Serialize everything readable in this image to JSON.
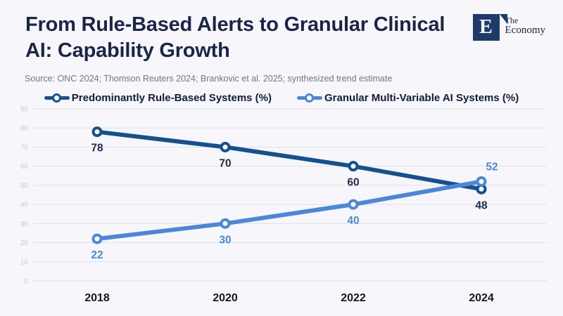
{
  "header": {
    "title": "From Rule-Based Alerts to Granular Clinical AI: Capability Growth",
    "source": "Source: ONC 2024; Thomson Reuters 2024; Brankovic et al. 2025; synthesized trend estimate"
  },
  "logo": {
    "letter": "E",
    "name_line1": "The",
    "name_line2": "Economy",
    "square_color": "#1e3a68"
  },
  "legend": [
    {
      "label": "Predominantly Rule-Based Systems (%)",
      "color": "#15518f"
    },
    {
      "label": "Granular Multi-Variable AI Systems (%)",
      "color": "#4a87db"
    }
  ],
  "chart_data": {
    "type": "line",
    "categories": [
      "2018",
      "2020",
      "2022",
      "2024"
    ],
    "series": [
      {
        "name": "Predominantly Rule-Based Systems (%)",
        "color": "#15518f",
        "label_color": "#1e2b4d",
        "values": [
          78,
          70,
          60,
          48
        ],
        "label_positions": [
          "below",
          "below",
          "below",
          "below"
        ]
      },
      {
        "name": "Granular Multi-Variable AI Systems (%)",
        "color": "#4a87db",
        "label_color": "#4a87db",
        "values": [
          22,
          30,
          40,
          52
        ],
        "label_positions": [
          "below",
          "below",
          "below",
          "above"
        ]
      }
    ],
    "ylim": [
      0,
      90
    ],
    "ytick_step": 10,
    "grid": true,
    "legend_position": "top",
    "marker": "open-circle",
    "data_labels": true
  },
  "colors": {
    "background": "#f7f7fb",
    "title_text": "#1a2547",
    "source_text": "#6e7687",
    "grid_line": "#dde1ea",
    "ytick_text": "#c5cad7",
    "xtick_text": "#14181f",
    "series_dark": "#15518f",
    "series_light": "#4a87db"
  }
}
